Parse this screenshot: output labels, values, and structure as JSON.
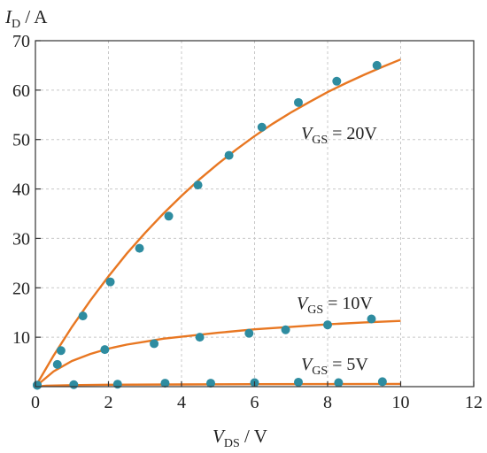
{
  "chart_data": {
    "type": "scatter",
    "xlabel": {
      "symbol": "V",
      "subscript": "DS",
      "unit": " / V"
    },
    "ylabel": {
      "symbol": "I",
      "subscript": "D",
      "unit": " / A"
    },
    "xlim": [
      0,
      12
    ],
    "ylim": [
      0,
      70
    ],
    "xticks": [
      0,
      2,
      4,
      6,
      8,
      10,
      12
    ],
    "yticks": [
      10,
      20,
      30,
      40,
      50,
      60,
      70
    ],
    "grid": true,
    "colors": {
      "points": "#2e8ca0",
      "lines": "#e87722"
    },
    "series": [
      {
        "name": "V_GS = 20V",
        "label": {
          "symbol": "V",
          "subscript": "GS",
          "text": " = 20V"
        },
        "points": [
          [
            0.05,
            0.3
          ],
          [
            0.7,
            7.3
          ],
          [
            1.3,
            14.3
          ],
          [
            2.05,
            21.2
          ],
          [
            2.85,
            28
          ],
          [
            3.65,
            34.5
          ],
          [
            4.45,
            40.8
          ],
          [
            5.3,
            46.8
          ],
          [
            6.2,
            52.5
          ],
          [
            7.2,
            57.5
          ],
          [
            8.25,
            61.8
          ],
          [
            9.35,
            65
          ]
        ],
        "fit": [
          [
            0,
            0
          ],
          [
            0.5,
            6.3
          ],
          [
            1,
            12.1
          ],
          [
            1.5,
            17.4
          ],
          [
            2,
            22.3
          ],
          [
            2.5,
            26.9
          ],
          [
            3,
            31.1
          ],
          [
            3.5,
            35
          ],
          [
            4,
            38.6
          ],
          [
            4.5,
            42
          ],
          [
            5,
            45.1
          ],
          [
            5.5,
            48
          ],
          [
            6,
            50.7
          ],
          [
            6.5,
            53.2
          ],
          [
            7,
            55.5
          ],
          [
            7.5,
            57.6
          ],
          [
            8,
            59.6
          ],
          [
            8.5,
            61.4
          ],
          [
            9,
            63.1
          ],
          [
            9.5,
            64.7
          ],
          [
            10,
            66.2
          ]
        ]
      },
      {
        "name": "V_GS = 10V",
        "label": {
          "symbol": "V",
          "subscript": "GS",
          "text": " = 10V"
        },
        "points": [
          [
            0.05,
            0.3
          ],
          [
            0.6,
            4.5
          ],
          [
            1.9,
            7.5
          ],
          [
            3.25,
            8.7
          ],
          [
            4.5,
            10
          ],
          [
            5.85,
            10.8
          ],
          [
            6.85,
            11.5
          ],
          [
            8,
            12.5
          ],
          [
            9.2,
            13.7
          ]
        ],
        "fit": [
          [
            0,
            0
          ],
          [
            0.5,
            3.1
          ],
          [
            1,
            5.2
          ],
          [
            1.5,
            6.6
          ],
          [
            2,
            7.7
          ],
          [
            2.5,
            8.5
          ],
          [
            3,
            9.1
          ],
          [
            3.5,
            9.7
          ],
          [
            4,
            10.1
          ],
          [
            5,
            10.9
          ],
          [
            6,
            11.6
          ],
          [
            7,
            12.1
          ],
          [
            8,
            12.6
          ],
          [
            9,
            13
          ],
          [
            10,
            13.3
          ]
        ]
      },
      {
        "name": "V_GS = 5V",
        "label": {
          "symbol": "V",
          "subscript": "GS",
          "text": " = 5V"
        },
        "points": [
          [
            0.05,
            0.3
          ],
          [
            1.05,
            0.4
          ],
          [
            2.25,
            0.5
          ],
          [
            3.55,
            0.7
          ],
          [
            4.8,
            0.7
          ],
          [
            6,
            0.8
          ],
          [
            7.2,
            0.9
          ],
          [
            8.3,
            0.8
          ],
          [
            9.5,
            1
          ]
        ],
        "fit": [
          [
            0,
            0
          ],
          [
            0.3,
            0.2
          ],
          [
            1,
            0.3
          ],
          [
            2,
            0.4
          ],
          [
            4,
            0.45
          ],
          [
            6,
            0.5
          ],
          [
            8,
            0.52
          ],
          [
            10,
            0.55
          ]
        ]
      }
    ]
  }
}
